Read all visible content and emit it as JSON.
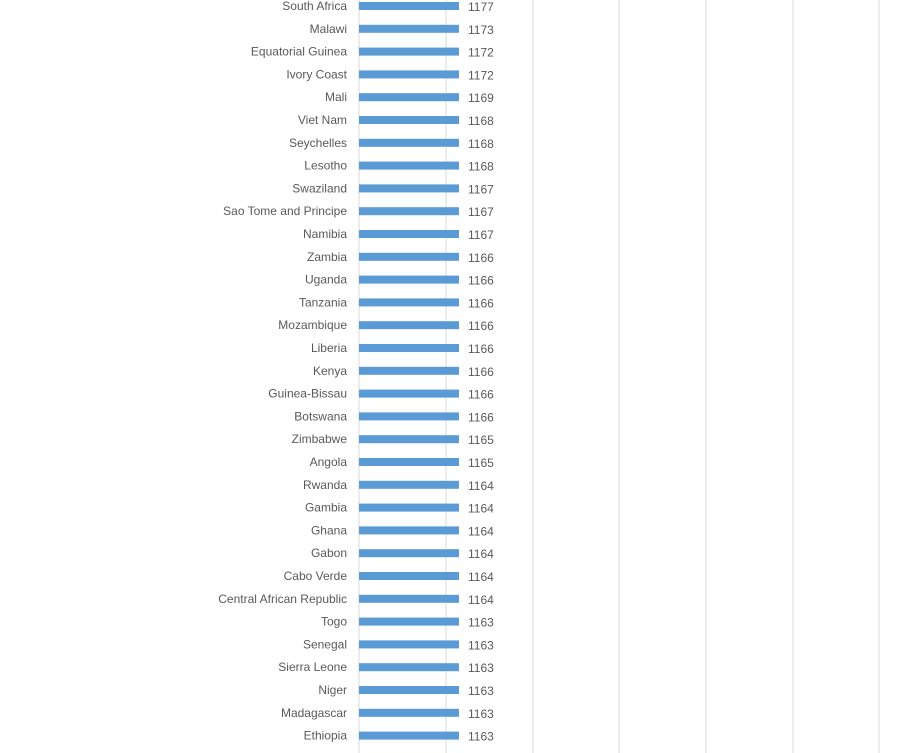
{
  "chart_data": {
    "type": "bar",
    "orientation": "horizontal",
    "grid": true,
    "bar_color": "#5b9bd5",
    "categories": [
      "South Africa",
      "Malawi",
      "Equatorial Guinea",
      "Ivory Coast",
      "Mali",
      "Viet Nam",
      "Seychelles",
      "Lesotho",
      "Swaziland",
      "Sao Tome and Principe",
      "Namibia",
      "Zambia",
      "Uganda",
      "Tanzania",
      "Mozambique",
      "Liberia",
      "Kenya",
      "Guinea-Bissau",
      "Botswana",
      "Zimbabwe",
      "Angola",
      "Rwanda",
      "Gambia",
      "Ghana",
      "Gabon",
      "Cabo Verde",
      "Central African Republic",
      "Togo",
      "Senegal",
      "Sierra Leone",
      "Niger",
      "Madagascar",
      "Ethiopia"
    ],
    "values": [
      1177,
      1173,
      1172,
      1172,
      1169,
      1168,
      1168,
      1168,
      1167,
      1167,
      1167,
      1166,
      1166,
      1166,
      1166,
      1166,
      1166,
      1166,
      1166,
      1165,
      1165,
      1164,
      1164,
      1164,
      1164,
      1164,
      1164,
      1163,
      1163,
      1163,
      1163,
      1163,
      1163
    ]
  }
}
